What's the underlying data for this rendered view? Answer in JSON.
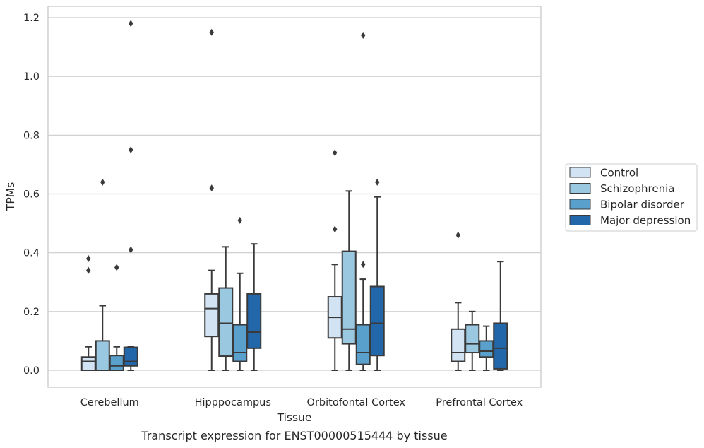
{
  "caption": "Transcript expression for ENST00000515444 by tissue",
  "chart_data": {
    "type": "box",
    "title": "",
    "xlabel": "Tissue",
    "ylabel": "TPMs",
    "ylim": [
      -0.055,
      1.24
    ],
    "yticks": [
      0.0,
      0.2,
      0.4,
      0.6,
      0.8,
      1.0,
      1.2
    ],
    "ytick_labels": [
      "0.0",
      "0.2",
      "0.4",
      "0.6",
      "0.8",
      "1.0",
      "1.2"
    ],
    "grid": "horizontal",
    "legend_position": "outside-right",
    "categories": [
      "Cerebellum",
      "Hipppocampus",
      "Orbitofontal Cortex",
      "Prefrontal Cortex"
    ],
    "series": [
      {
        "name": "Control",
        "color": "#d2e3f3",
        "boxes": [
          {
            "whislo": 0.0,
            "q1": 0.0,
            "med": 0.03,
            "q3": 0.045,
            "whishi": 0.08,
            "fliers": [
              0.34,
              0.38
            ]
          },
          {
            "whislo": 0.0,
            "q1": 0.115,
            "med": 0.21,
            "q3": 0.26,
            "whishi": 0.34,
            "fliers": [
              0.62,
              1.15
            ]
          },
          {
            "whislo": 0.0,
            "q1": 0.11,
            "med": 0.18,
            "q3": 0.25,
            "whishi": 0.36,
            "fliers": [
              0.48,
              0.74
            ]
          },
          {
            "whislo": 0.0,
            "q1": 0.03,
            "med": 0.06,
            "q3": 0.14,
            "whishi": 0.23,
            "fliers": [
              0.46
            ]
          }
        ]
      },
      {
        "name": "Schizophrenia",
        "color": "#9ac8e0",
        "boxes": [
          {
            "whislo": 0.0,
            "q1": 0.0,
            "med": 0.0,
            "q3": 0.1,
            "whishi": 0.22,
            "fliers": [
              0.64
            ]
          },
          {
            "whislo": 0.0,
            "q1": 0.048,
            "med": 0.16,
            "q3": 0.28,
            "whishi": 0.42,
            "fliers": []
          },
          {
            "whislo": 0.0,
            "q1": 0.09,
            "med": 0.14,
            "q3": 0.405,
            "whishi": 0.61,
            "fliers": []
          },
          {
            "whislo": 0.0,
            "q1": 0.06,
            "med": 0.09,
            "q3": 0.155,
            "whishi": 0.2,
            "fliers": []
          }
        ]
      },
      {
        "name": "Bipolar disorder",
        "color": "#5aa0cd",
        "boxes": [
          {
            "whislo": 0.0,
            "q1": 0.0,
            "med": 0.015,
            "q3": 0.05,
            "whishi": 0.08,
            "fliers": [
              0.35
            ]
          },
          {
            "whislo": 0.0,
            "q1": 0.03,
            "med": 0.06,
            "q3": 0.155,
            "whishi": 0.33,
            "fliers": [
              0.51
            ]
          },
          {
            "whislo": 0.0,
            "q1": 0.02,
            "med": 0.06,
            "q3": 0.155,
            "whishi": 0.31,
            "fliers": [
              0.36,
              1.14
            ]
          },
          {
            "whislo": 0.0,
            "q1": 0.045,
            "med": 0.065,
            "q3": 0.1,
            "whishi": 0.15,
            "fliers": []
          }
        ]
      },
      {
        "name": "Major depression",
        "color": "#2367ab",
        "boxes": [
          {
            "whislo": 0.0,
            "q1": 0.015,
            "med": 0.03,
            "q3": 0.078,
            "whishi": 0.08,
            "fliers": [
              0.41,
              0.75,
              1.18
            ]
          },
          {
            "whislo": 0.0,
            "q1": 0.075,
            "med": 0.13,
            "q3": 0.26,
            "whishi": 0.43,
            "fliers": []
          },
          {
            "whislo": 0.0,
            "q1": 0.05,
            "med": 0.16,
            "q3": 0.285,
            "whishi": 0.59,
            "fliers": [
              0.64
            ]
          },
          {
            "whislo": 0.0,
            "q1": 0.005,
            "med": 0.075,
            "q3": 0.16,
            "whishi": 0.37,
            "fliers": []
          }
        ]
      }
    ]
  }
}
